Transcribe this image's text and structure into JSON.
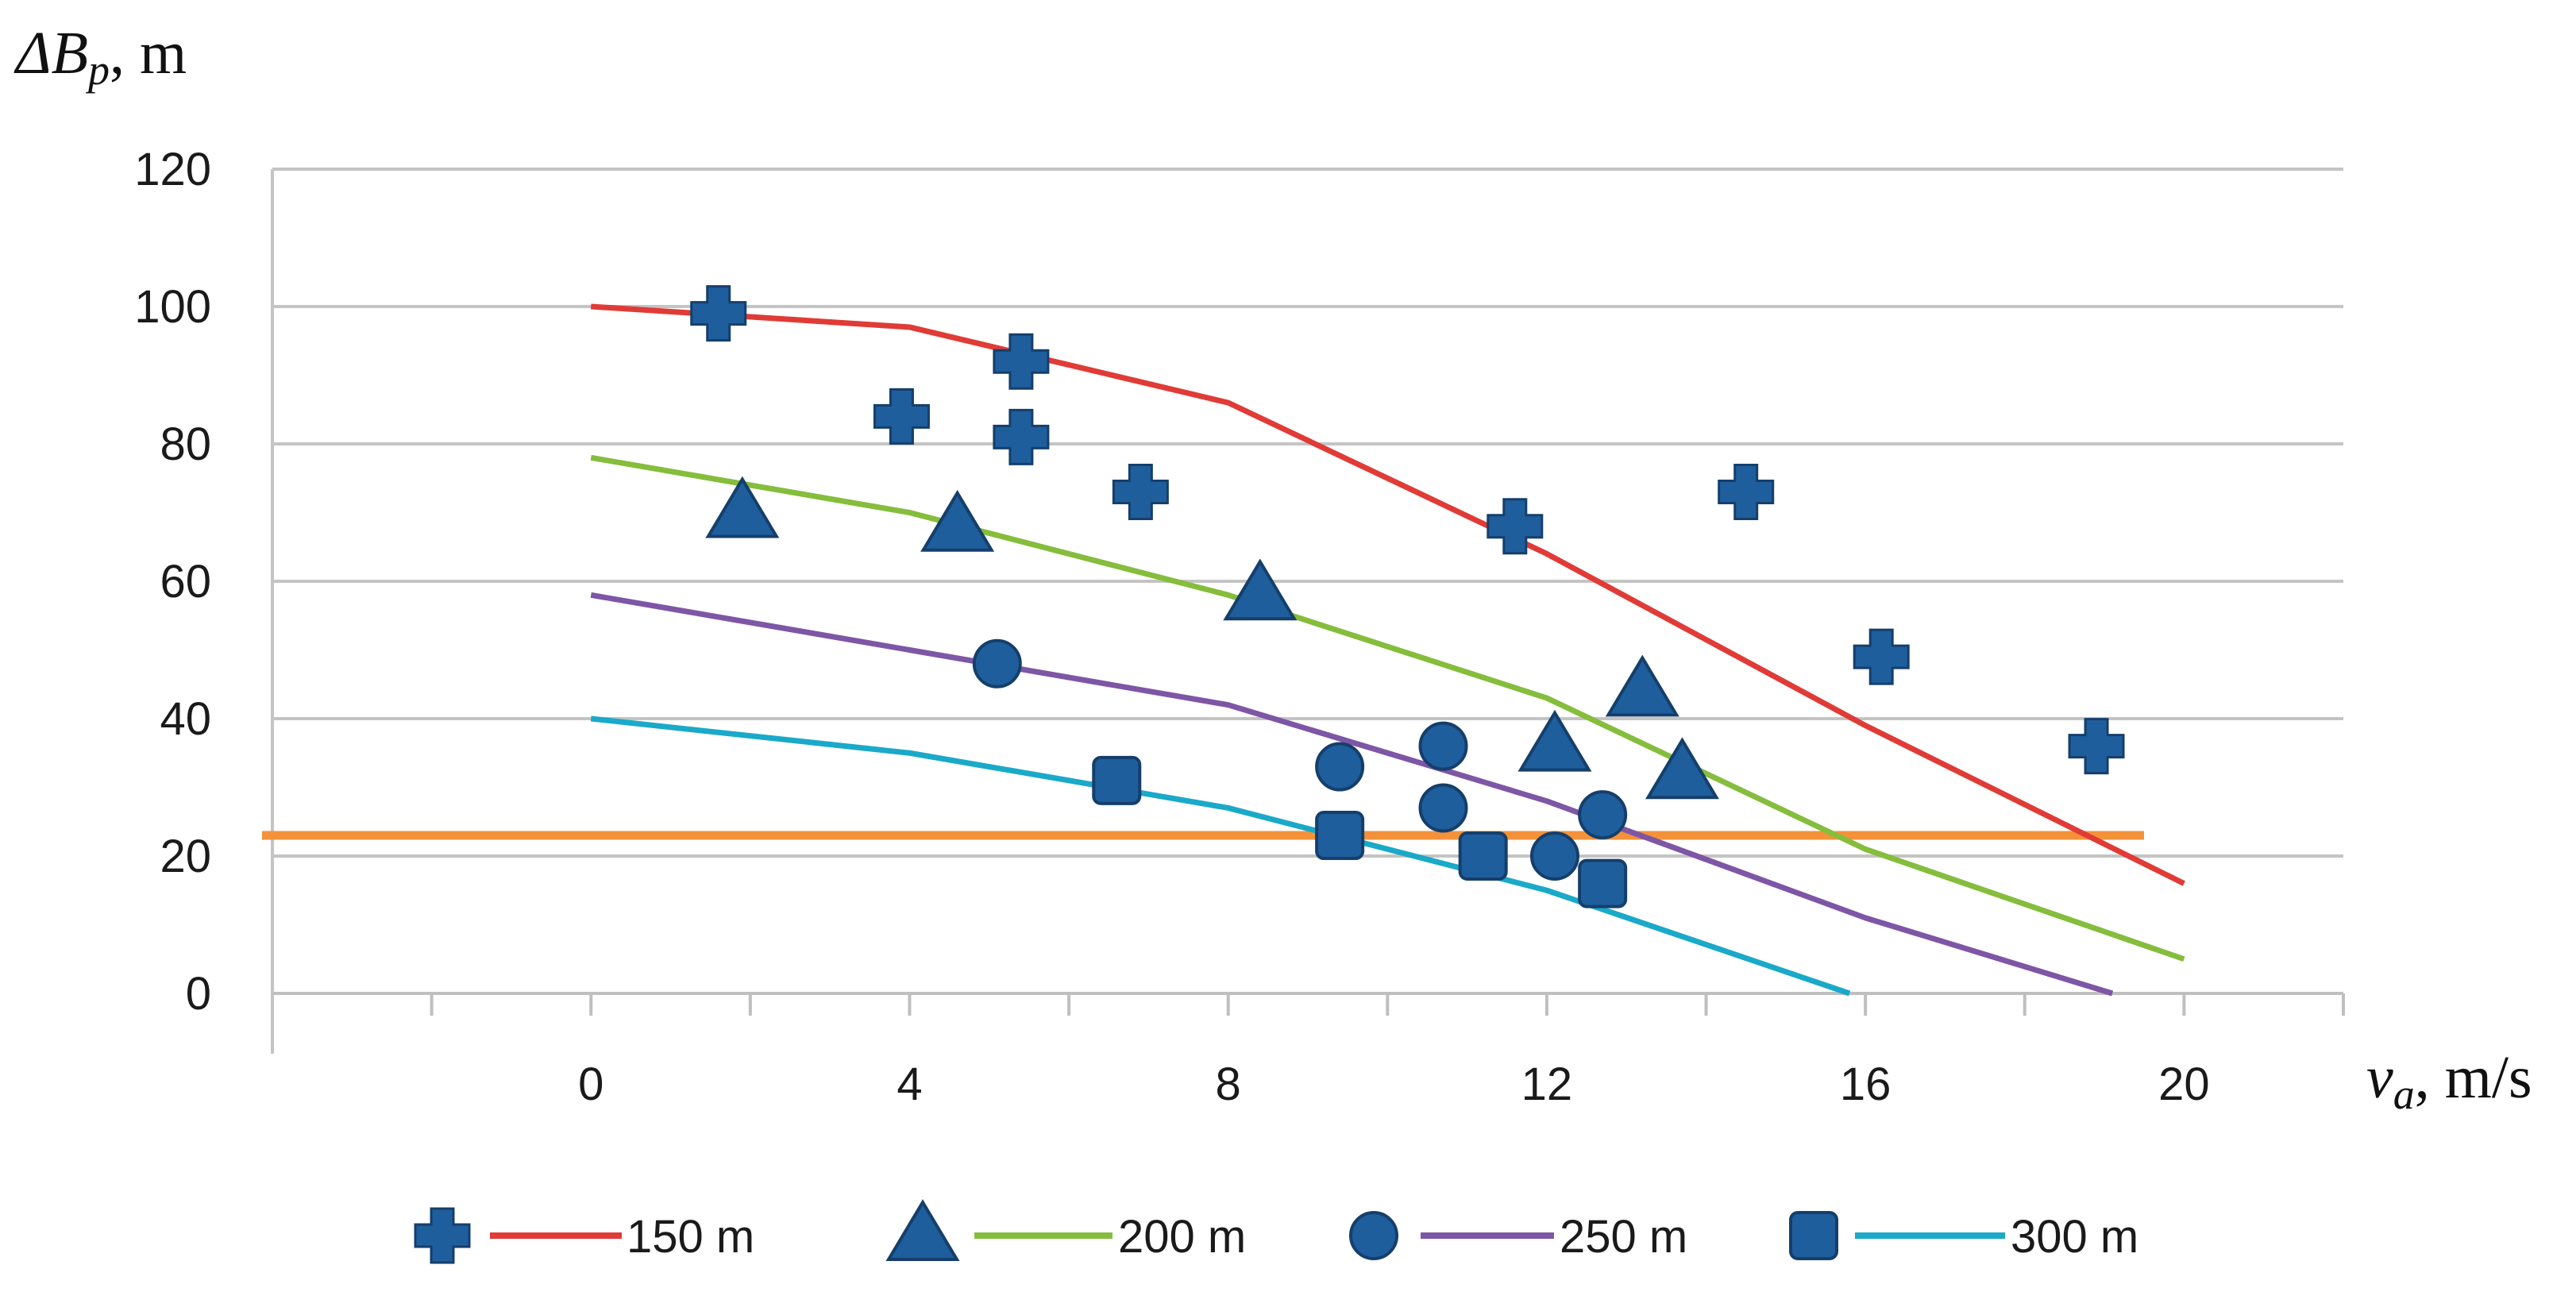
{
  "chart_data": {
    "type": "line+scatter",
    "title": "",
    "ylabel": {
      "symbol": "ΔB",
      "subscript": "p",
      "unit": ", m"
    },
    "xlabel": {
      "symbol": "v",
      "subscript": "a",
      "unit": ", m/s"
    },
    "x_ticks": [
      "0",
      "4",
      "8",
      "12",
      "16",
      "20"
    ],
    "y_ticks": [
      "0",
      "20",
      "40",
      "60",
      "80",
      "100",
      "120"
    ],
    "xlim": [
      -4,
      22
    ],
    "ylim": [
      0,
      120
    ],
    "grid": "horizontal",
    "legend_position": "bottom",
    "threshold": {
      "y": 23,
      "color": "#f4923a"
    },
    "marker_color": "#1f5e9c",
    "series": [
      {
        "name": "150 m",
        "line_color": "#e03b36",
        "marker": "plus",
        "line": {
          "x": [
            0,
            4,
            8,
            12,
            16,
            20
          ],
          "y": [
            100,
            97,
            86,
            64,
            39,
            16
          ]
        },
        "points": {
          "x": [
            1.6,
            3.9,
            5.4,
            5.4,
            6.9,
            11.6,
            14.5,
            16.2,
            18.9
          ],
          "y": [
            99,
            84,
            92,
            81,
            73,
            68,
            73,
            49,
            36
          ]
        }
      },
      {
        "name": "200 m",
        "line_color": "#85bd3c",
        "marker": "triangle",
        "line": {
          "x": [
            0,
            4,
            8,
            12,
            16,
            20
          ],
          "y": [
            78,
            70,
            58,
            43,
            21,
            5
          ]
        },
        "points": {
          "x": [
            1.9,
            4.6,
            8.4,
            12.1,
            13.2,
            13.7
          ],
          "y": [
            70,
            68,
            58,
            36,
            44,
            32
          ]
        }
      },
      {
        "name": "250 m",
        "line_color": "#7e56a6",
        "marker": "circle",
        "line": {
          "x": [
            0,
            4,
            8,
            12,
            16,
            19.1
          ],
          "y": [
            58,
            50,
            42,
            28,
            11,
            0
          ]
        },
        "points": {
          "x": [
            5.1,
            9.4,
            10.7,
            10.7,
            12.1,
            12.7
          ],
          "y": [
            48,
            33,
            36,
            27,
            20,
            26
          ]
        }
      },
      {
        "name": "300 m",
        "line_color": "#1aa9c9",
        "marker": "square",
        "line": {
          "x": [
            0,
            4,
            8,
            12,
            15.8
          ],
          "y": [
            40,
            35,
            27,
            15,
            0
          ]
        },
        "points": {
          "x": [
            6.6,
            9.4,
            11.2,
            12.7
          ],
          "y": [
            31,
            23,
            20,
            16
          ]
        }
      }
    ]
  }
}
